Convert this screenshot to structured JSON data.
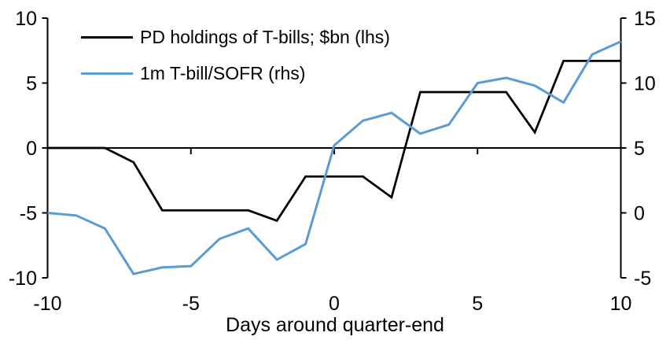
{
  "chart_data": {
    "type": "line",
    "title": "",
    "xlabel": "Days around quarter-end",
    "grid": false,
    "background": "#FFFFFF",
    "legend_position": "top-left",
    "x": [
      -10,
      -9,
      -8,
      -7,
      -6,
      -5,
      -4,
      -3,
      -2,
      -1,
      0,
      1,
      2,
      3,
      4,
      5,
      6,
      7,
      8,
      9,
      10
    ],
    "series": [
      {
        "name": "PD holdings of T-bills; $bn (lhs)",
        "axis": "left",
        "color": "#000000",
        "values": [
          0,
          0,
          0,
          -1.1,
          -4.8,
          -4.8,
          -4.8,
          -4.8,
          -5.6,
          -2.2,
          -2.2,
          -2.2,
          -3.8,
          4.3,
          4.3,
          4.3,
          4.3,
          1.2,
          6.7,
          6.7,
          6.7
        ]
      },
      {
        "name": "1m T-bill/SOFR (rhs)",
        "axis": "right",
        "color": "#5B9BD5",
        "values": [
          0,
          -0.2,
          -1.2,
          -4.7,
          -4.2,
          -4.1,
          -2.0,
          -1.2,
          -3.6,
          -2.4,
          5.2,
          7.1,
          7.7,
          6.1,
          6.8,
          10.0,
          10.4,
          9.8,
          8.5,
          12.2,
          13.2
        ]
      }
    ],
    "axes": {
      "left": {
        "range": [
          -10,
          10
        ],
        "ticks": [
          10,
          5,
          0,
          -5,
          -10
        ]
      },
      "right": {
        "range": [
          -5,
          15
        ],
        "ticks": [
          15,
          10,
          5,
          0,
          -5
        ]
      },
      "x": {
        "range": [
          -10,
          10
        ],
        "ticks": [
          -10,
          -5,
          0,
          5,
          10
        ],
        "zero_line": true
      }
    }
  }
}
